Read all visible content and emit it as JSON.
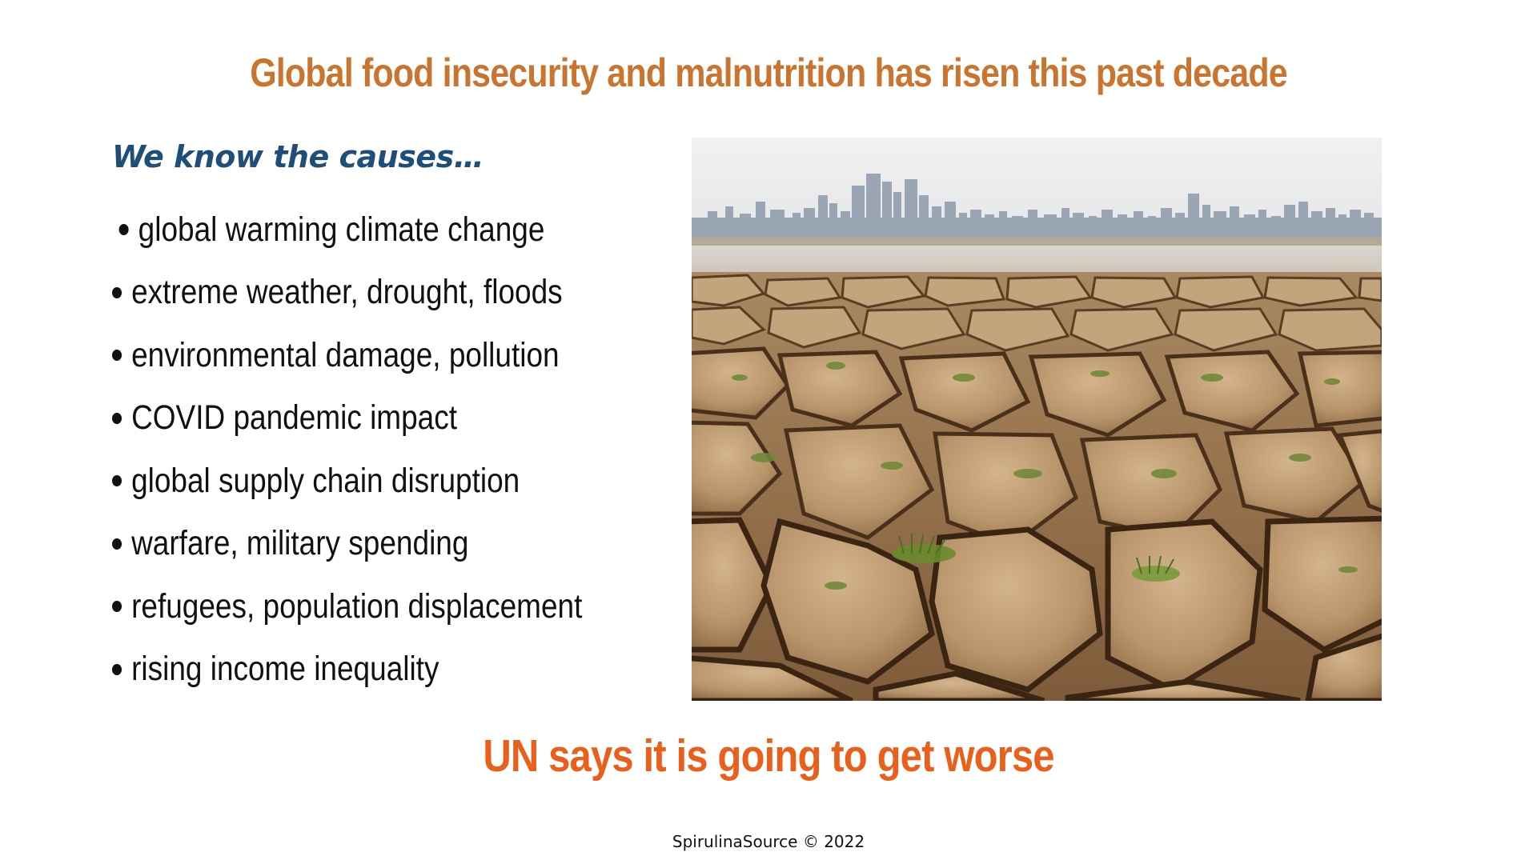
{
  "slide": {
    "title": "Global food insecurity and malnutrition has risen this past decade",
    "subtitle": "We know the causes…",
    "bullets": [
      "global warming climate change",
      "extreme weather, drought, floods",
      "environmental damage, pollution",
      "COVID pandemic impact",
      "global supply chain disruption",
      "warfare, military spending",
      "refugees, population displacement",
      "rising income inequality"
    ],
    "tagline": "UN says it is going to get worse",
    "footer": "SpirulinaSource © 2022"
  },
  "colors": {
    "title": "#c9742f",
    "subtitle": "#1f4e79",
    "tagline": "#e8601c",
    "text": "#111111"
  },
  "image": {
    "subject": "cracked-dry-earth-with-city-skyline-photo"
  }
}
